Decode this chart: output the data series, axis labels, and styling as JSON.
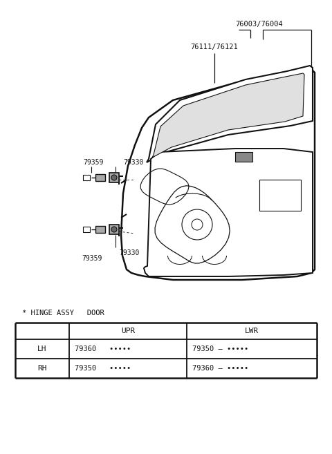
{
  "bg_color": "#ffffff",
  "label_76003_76004": "76003/76004",
  "label_76111_76121": "76111/76121",
  "label_79330_upper": "79330",
  "label_79359_upper": "79359",
  "label_79330_lower": "79330",
  "label_79359_lower": "79359",
  "table_title": "* HINGE ASSY   DOOR",
  "col_header_upr": "UPR",
  "col_header_lwr": "LWR",
  "lh_label": "LH",
  "rh_label": "RH",
  "lh_upr": "79360   •••••",
  "lh_lwr": "79350 – •••••",
  "rh_upr": "79350   •••••",
  "rh_lwr": "79360 – •••••"
}
